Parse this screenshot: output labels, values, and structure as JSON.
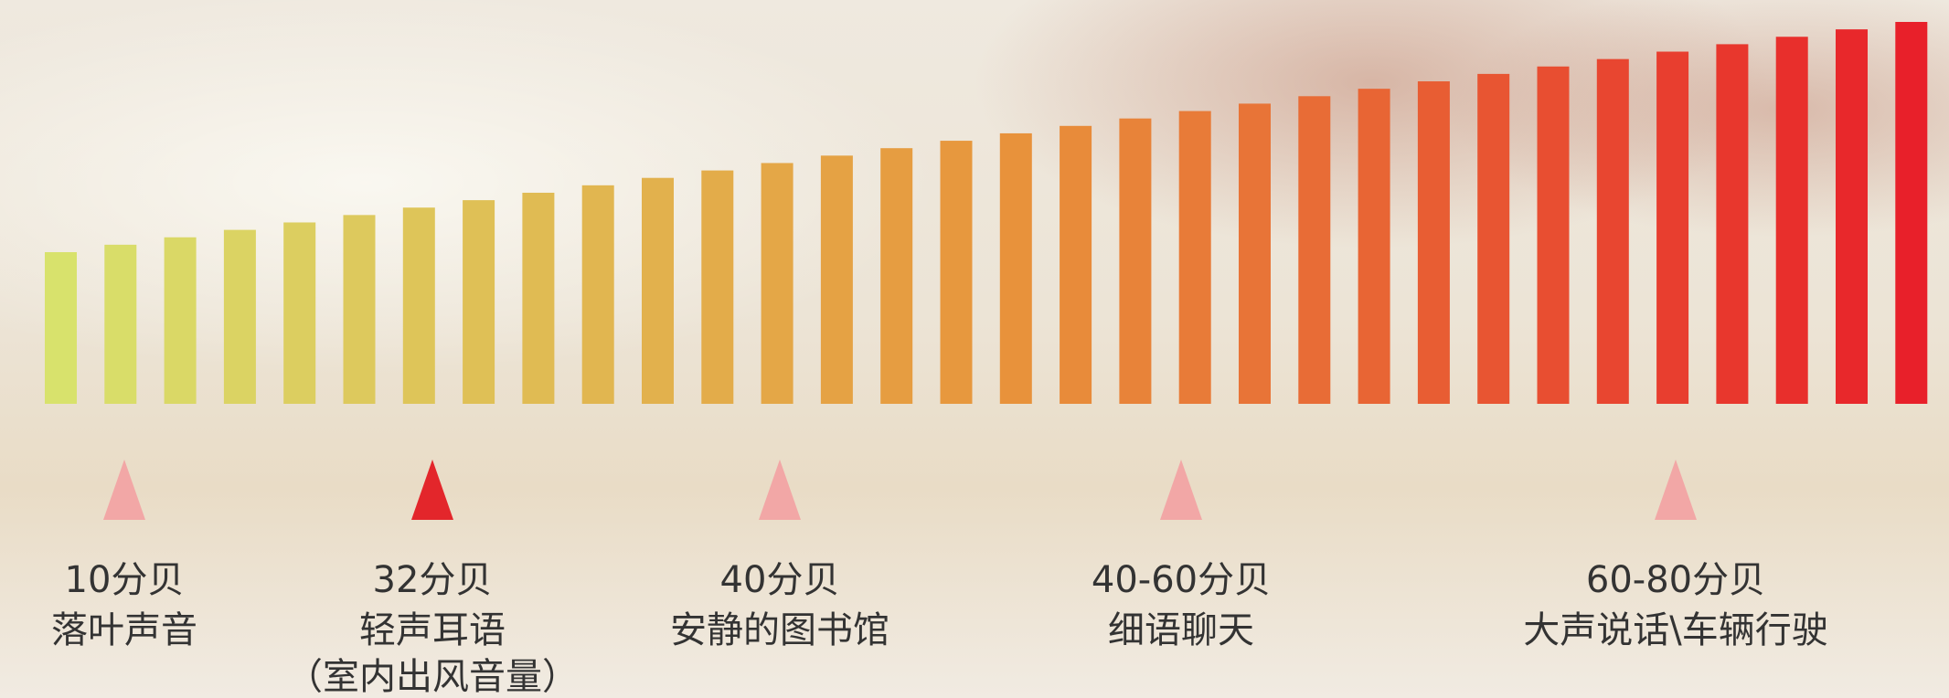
{
  "markers": [
    {
      "level": "10分贝",
      "label": "落叶声音"
    },
    {
      "level": "32分贝",
      "label": "轻声耳语",
      "note": "（室内出风音量）"
    },
    {
      "level": "40分贝",
      "label": "安静的图书馆"
    },
    {
      "level": "40-60分贝",
      "label": "细语聊天"
    },
    {
      "level": "60-80分贝",
      "label": "大声说话\\车辆行驶"
    }
  ]
}
